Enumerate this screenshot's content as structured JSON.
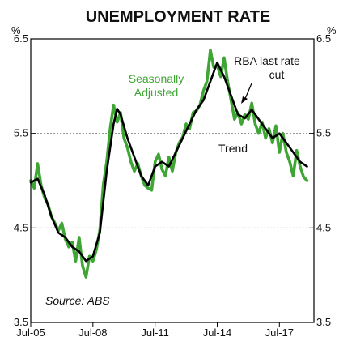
{
  "chart_data": {
    "type": "line",
    "title": "UNEMPLOYMENT RATE",
    "y_unit_left": "%",
    "y_unit_right": "%",
    "ylim": [
      3.5,
      6.5
    ],
    "y_ticks": [
      3.5,
      4.5,
      5.5,
      6.5
    ],
    "y_tick_labels": [
      "3.5",
      "4.5",
      "5.5",
      "6.5"
    ],
    "xlim": [
      "2005-07",
      "2019-03"
    ],
    "x_ticks": [
      "2005-07",
      "2008-07",
      "2011-07",
      "2014-07",
      "2017-07"
    ],
    "x_tick_labels": [
      "Jul-05",
      "Jul-08",
      "Jul-11",
      "Jul-14",
      "Jul-17"
    ],
    "gridlines": [
      4.5,
      5.5
    ],
    "annotations": {
      "seasonally_adjusted": [
        "Seasonally",
        "Adjusted"
      ],
      "trend": "Trend",
      "rba": [
        "RBA last rate",
        "cut"
      ],
      "source": "Source: ABS"
    },
    "colors": {
      "seasonally_adjusted": "#3fa535",
      "trend": "#000000",
      "grid": "#888888"
    },
    "series": [
      {
        "name": "Seasonally Adjusted",
        "x": [
          "2005-07",
          "2005-09",
          "2005-11",
          "2006-01",
          "2006-03",
          "2006-05",
          "2006-07",
          "2006-09",
          "2006-11",
          "2007-01",
          "2007-03",
          "2007-05",
          "2007-07",
          "2007-09",
          "2007-11",
          "2008-01",
          "2008-03",
          "2008-05",
          "2008-07",
          "2008-09",
          "2008-11",
          "2009-01",
          "2009-03",
          "2009-05",
          "2009-07",
          "2009-09",
          "2009-11",
          "2010-01",
          "2010-03",
          "2010-05",
          "2010-07",
          "2010-09",
          "2010-11",
          "2011-01",
          "2011-03",
          "2011-05",
          "2011-07",
          "2011-09",
          "2011-11",
          "2012-01",
          "2012-03",
          "2012-05",
          "2012-07",
          "2012-09",
          "2012-11",
          "2013-01",
          "2013-03",
          "2013-05",
          "2013-07",
          "2013-09",
          "2013-11",
          "2014-01",
          "2014-03",
          "2014-05",
          "2014-07",
          "2014-09",
          "2014-11",
          "2015-01",
          "2015-03",
          "2015-05",
          "2015-07",
          "2015-09",
          "2015-11",
          "2016-01",
          "2016-03",
          "2016-05",
          "2016-07",
          "2016-09",
          "2016-11",
          "2017-01",
          "2017-03",
          "2017-05",
          "2017-07",
          "2017-09",
          "2017-11",
          "2018-01",
          "2018-03",
          "2018-05",
          "2018-07",
          "2018-09",
          "2018-11"
        ],
        "values": [
          5.0,
          4.92,
          5.18,
          4.95,
          4.82,
          4.75,
          4.62,
          4.55,
          4.47,
          4.55,
          4.38,
          4.3,
          4.35,
          4.15,
          4.4,
          4.1,
          3.98,
          4.2,
          4.15,
          4.27,
          4.48,
          4.95,
          5.2,
          5.55,
          5.8,
          5.62,
          5.72,
          5.45,
          5.35,
          5.2,
          5.1,
          5.18,
          5.05,
          4.95,
          4.92,
          4.9,
          5.2,
          5.28,
          5.12,
          5.05,
          5.25,
          5.1,
          5.3,
          5.4,
          5.46,
          5.6,
          5.55,
          5.72,
          5.74,
          5.8,
          5.95,
          6.05,
          6.38,
          6.2,
          6.22,
          6.1,
          6.3,
          6.05,
          5.85,
          5.65,
          5.72,
          5.6,
          5.7,
          5.65,
          5.82,
          5.6,
          5.5,
          5.62,
          5.45,
          5.55,
          5.4,
          5.58,
          5.3,
          5.5,
          5.3,
          5.2,
          5.05,
          5.32,
          5.15,
          5.04,
          5.0
        ]
      },
      {
        "name": "Trend",
        "x": [
          "2005-07",
          "2005-11",
          "2006-03",
          "2006-07",
          "2006-11",
          "2007-03",
          "2007-07",
          "2007-11",
          "2008-03",
          "2008-07",
          "2008-11",
          "2009-03",
          "2009-07",
          "2009-09",
          "2009-11",
          "2010-03",
          "2010-07",
          "2010-11",
          "2011-03",
          "2011-07",
          "2011-11",
          "2012-03",
          "2012-07",
          "2012-11",
          "2013-03",
          "2013-07",
          "2013-11",
          "2014-03",
          "2014-07",
          "2014-11",
          "2015-03",
          "2015-07",
          "2015-11",
          "2016-03",
          "2016-07",
          "2016-11",
          "2017-03",
          "2017-07",
          "2017-11",
          "2018-03",
          "2018-07",
          "2018-11"
        ],
        "values": [
          4.98,
          5.02,
          4.85,
          4.62,
          4.45,
          4.4,
          4.3,
          4.25,
          4.15,
          4.2,
          4.45,
          5.1,
          5.6,
          5.76,
          5.7,
          5.45,
          5.25,
          5.05,
          4.95,
          5.15,
          5.2,
          5.15,
          5.3,
          5.45,
          5.6,
          5.75,
          5.85,
          6.05,
          6.25,
          6.1,
          5.9,
          5.7,
          5.66,
          5.75,
          5.65,
          5.55,
          5.45,
          5.5,
          5.4,
          5.3,
          5.2,
          5.15
        ]
      }
    ]
  }
}
